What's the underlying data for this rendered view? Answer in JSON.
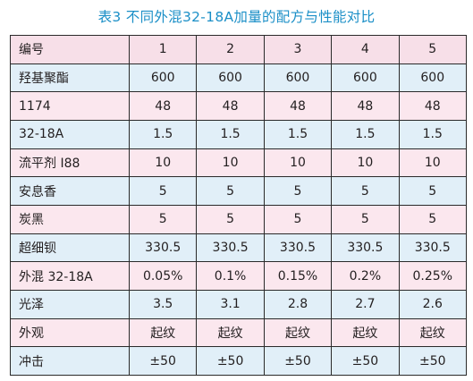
{
  "title": "表3 不同外混32-18A加量的配方与性能对比",
  "table": {
    "header": [
      "编号",
      "1",
      "2",
      "3",
      "4",
      "5"
    ],
    "rows": [
      [
        "羟基聚酯",
        "600",
        "600",
        "600",
        "600",
        "600"
      ],
      [
        "1174",
        "48",
        "48",
        "48",
        "48",
        "48"
      ],
      [
        "32-18A",
        "1.5",
        "1.5",
        "1.5",
        "1.5",
        "1.5"
      ],
      [
        "流平剂 I88",
        "10",
        "10",
        "10",
        "10",
        "10"
      ],
      [
        "安息香",
        "5",
        "5",
        "5",
        "5",
        "5"
      ],
      [
        "炭黑",
        "5",
        "5",
        "5",
        "5",
        "5"
      ],
      [
        "超细钡",
        "330.5",
        "330.5",
        "330.5",
        "330.5",
        "330.5"
      ],
      [
        "外混 32-18A",
        "0.05%",
        "0.1%",
        "0.15%",
        "0.2%",
        "0.25%"
      ],
      [
        "光泽",
        "3.5",
        "3.1",
        "2.8",
        "2.7",
        "2.6"
      ],
      [
        "外观",
        "起纹",
        "起纹",
        "起纹",
        "起纹",
        "起纹"
      ],
      [
        "冲击",
        "±50",
        "±50",
        "±50",
        "±50",
        "±50"
      ]
    ]
  },
  "colors": {
    "title": "#1b8fc7",
    "row_pink": "#fbe7ee",
    "row_blue": "#e1eff8",
    "border": "#2a2a2a"
  }
}
